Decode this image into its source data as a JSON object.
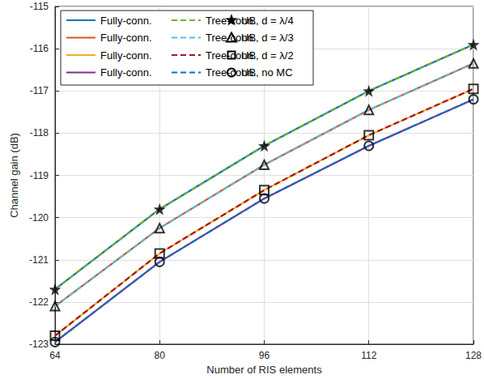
{
  "chart_data": {
    "type": "line",
    "x_label": "Number of RIS elements",
    "y_label": "Channel gain (dB)",
    "x": [
      64,
      80,
      96,
      112,
      128
    ],
    "xlim": [
      64,
      128
    ],
    "xticks": [
      64,
      80,
      96,
      112,
      128
    ],
    "ylim": [
      -123,
      -115
    ],
    "yticks": [
      -123,
      -122,
      -121,
      -120,
      -119,
      -118,
      -117,
      -116,
      -115
    ],
    "grid": true,
    "series": [
      {
        "name": "Fully-conn.",
        "type": "line",
        "line_style": "solid",
        "color": "#0072bd",
        "values": [
          -121.7,
          -119.8,
          -118.3,
          -117.0,
          -115.9
        ]
      },
      {
        "name": "Fully-conn.",
        "type": "line",
        "line_style": "solid",
        "color": "#d95319",
        "values": [
          -122.1,
          -120.25,
          -118.75,
          -117.45,
          -116.35
        ]
      },
      {
        "name": "Fully-conn.",
        "type": "line",
        "line_style": "solid",
        "color": "#edb120",
        "values": [
          -122.8,
          -120.85,
          -119.35,
          -118.05,
          -116.95
        ]
      },
      {
        "name": "Fully-conn.",
        "type": "line",
        "line_style": "solid",
        "color": "#7e2f8e",
        "values": [
          -122.95,
          -121.05,
          -119.55,
          -118.3,
          -117.2
        ]
      },
      {
        "name": "Tree-conn.",
        "type": "line",
        "line_style": "dashed",
        "color": "#77ac30",
        "values": [
          -121.7,
          -119.8,
          -118.3,
          -117.0,
          -115.9
        ]
      },
      {
        "name": "Tree-conn.",
        "type": "line",
        "line_style": "dashed",
        "color": "#4dbeee",
        "values": [
          -122.1,
          -120.25,
          -118.75,
          -117.45,
          -116.35
        ]
      },
      {
        "name": "Tree-conn.",
        "type": "line",
        "line_style": "dashed",
        "color": "#a2142f",
        "values": [
          -122.8,
          -120.85,
          -119.35,
          -118.05,
          -116.95
        ]
      },
      {
        "name": "Tree-conn.",
        "type": "line",
        "line_style": "dashed",
        "color": "#0072bd",
        "values": [
          -122.95,
          -121.05,
          -119.55,
          -118.3,
          -117.2
        ]
      },
      {
        "name": "UB, d = λ/4",
        "type": "scatter",
        "marker": "star",
        "color": "#000000",
        "values": [
          -121.7,
          -119.8,
          -118.3,
          -117.0,
          -115.9
        ]
      },
      {
        "name": "UB, d = λ/3",
        "type": "scatter",
        "marker": "triangle",
        "color": "#000000",
        "values": [
          -122.1,
          -120.25,
          -118.75,
          -117.45,
          -116.35
        ]
      },
      {
        "name": "UB, d = λ/2",
        "type": "scatter",
        "marker": "square",
        "color": "#000000",
        "values": [
          -122.8,
          -120.85,
          -119.35,
          -118.05,
          -116.95
        ]
      },
      {
        "name": "UB, no MC",
        "type": "scatter",
        "marker": "circle",
        "color": "#000000",
        "values": [
          -122.95,
          -121.05,
          -119.55,
          -118.3,
          -117.2
        ]
      }
    ]
  }
}
